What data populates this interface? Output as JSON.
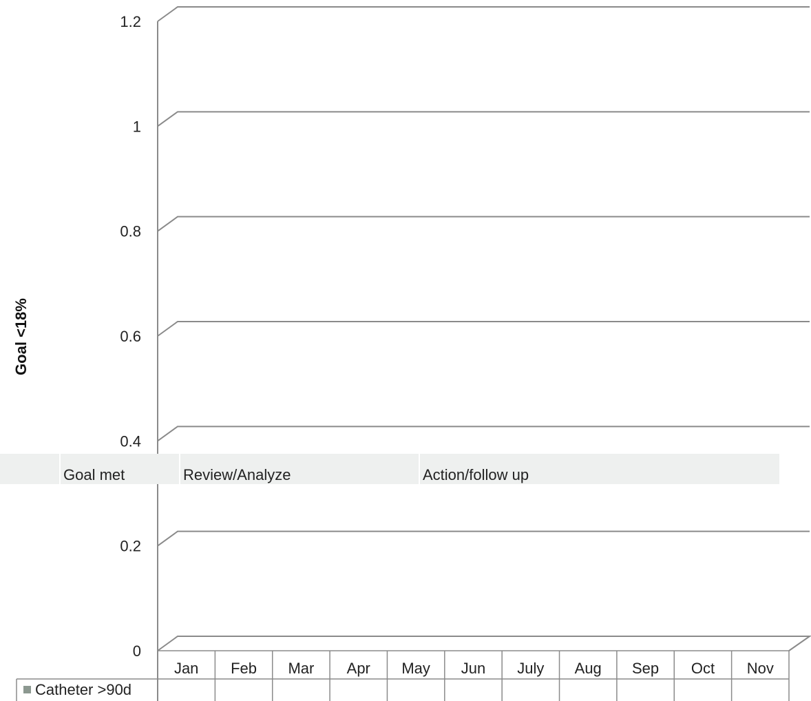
{
  "chart_data": {
    "type": "bar",
    "title": "",
    "xlabel": "",
    "ylabel": "Goal <18%",
    "ylim": [
      0,
      1.2
    ],
    "yticks": [
      "0",
      "0.2",
      "0.4",
      "0.6",
      "0.8",
      "1",
      "1.2"
    ],
    "grid": true,
    "legend_position": "bottom-left data table",
    "categories": [
      "Jan",
      "Feb",
      "Mar",
      "Apr",
      "May",
      "Jun",
      "July",
      "Aug",
      "Sep",
      "Oct",
      "Nov"
    ],
    "series": [
      {
        "name": "Catheter >90d",
        "values": [
          null,
          null,
          null,
          null,
          null,
          null,
          null,
          null,
          null,
          null,
          null
        ],
        "color": "#8c9890"
      }
    ]
  },
  "status_bar": {
    "goal_met": "Goal met",
    "review": "Review/Analyze",
    "action": "Action/follow up"
  },
  "colors": {
    "axis": "#8a8a8a",
    "status_fill": "#eef0ef"
  }
}
